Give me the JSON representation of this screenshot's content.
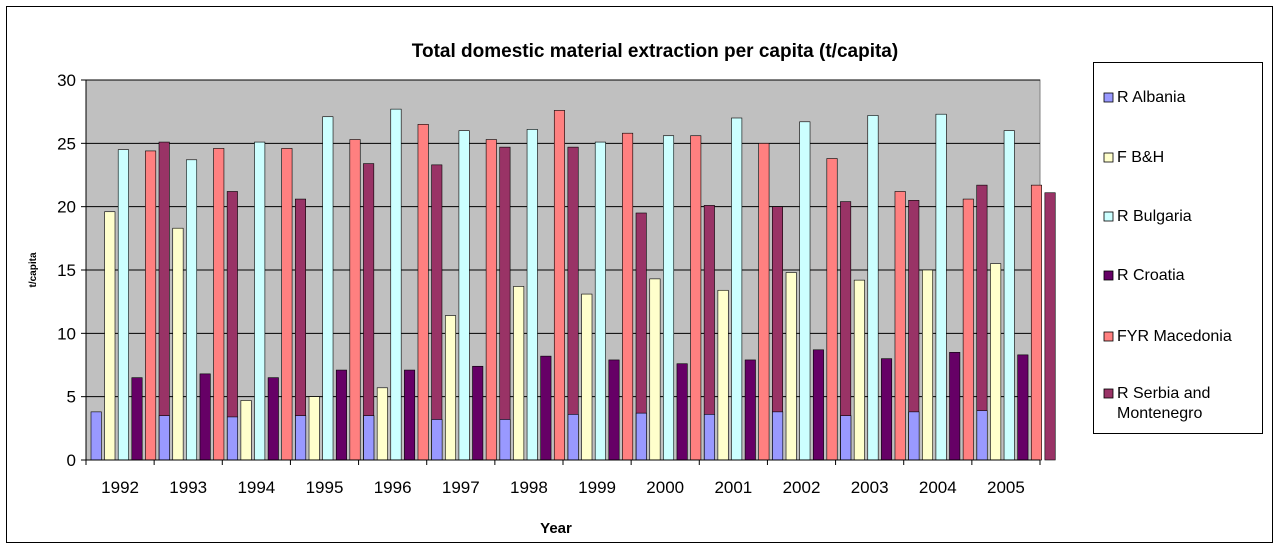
{
  "chart_data": {
    "type": "bar",
    "title": "Total domestic material extraction per capita (t/capita)",
    "xlabel": "Year",
    "ylabel": "t/capita",
    "ylim": [
      0,
      30
    ],
    "yticks": [
      0,
      5,
      10,
      15,
      20,
      25,
      30
    ],
    "grid": true,
    "legend_position": "right",
    "plot_background": "#c0c0c0",
    "categories": [
      "1992",
      "1993",
      "1994",
      "1995",
      "1996",
      "1997",
      "1998",
      "1999",
      "2000",
      "2001",
      "2002",
      "2003",
      "2004",
      "2005"
    ],
    "series": [
      {
        "name": "R Albania",
        "color": "#9999ff",
        "values": [
          3.8,
          3.5,
          3.4,
          3.5,
          3.5,
          3.2,
          3.2,
          3.6,
          3.7,
          3.6,
          3.8,
          3.5,
          3.8,
          3.9
        ]
      },
      {
        "name": "F B&H",
        "color": "#ffffcc",
        "values": [
          19.6,
          18.3,
          4.7,
          5.0,
          5.7,
          11.4,
          13.7,
          13.1,
          14.3,
          13.4,
          14.8,
          14.2,
          15.0,
          15.5
        ]
      },
      {
        "name": "R Bulgaria",
        "color": "#ccffff",
        "values": [
          24.5,
          23.7,
          25.1,
          27.1,
          27.7,
          26.0,
          26.1,
          25.1,
          25.6,
          27.0,
          26.7,
          27.2,
          27.3,
          26.0
        ]
      },
      {
        "name": "R Croatia",
        "color": "#660066",
        "values": [
          6.5,
          6.8,
          6.5,
          7.1,
          7.1,
          7.4,
          8.2,
          7.9,
          7.6,
          7.9,
          8.7,
          8.0,
          8.5,
          8.3
        ]
      },
      {
        "name": "FYR Macedonia",
        "color": "#ff8080",
        "values": [
          24.4,
          24.6,
          24.6,
          25.3,
          26.5,
          25.3,
          27.6,
          25.8,
          25.6,
          25.0,
          23.8,
          21.2,
          20.6,
          21.7
        ]
      },
      {
        "name": "R Serbia and Montenegro",
        "color": "#993366",
        "values": [
          25.1,
          21.2,
          20.6,
          23.4,
          23.3,
          24.7,
          24.7,
          19.5,
          20.1,
          20.0,
          20.4,
          20.5,
          21.7,
          21.1
        ]
      }
    ]
  }
}
